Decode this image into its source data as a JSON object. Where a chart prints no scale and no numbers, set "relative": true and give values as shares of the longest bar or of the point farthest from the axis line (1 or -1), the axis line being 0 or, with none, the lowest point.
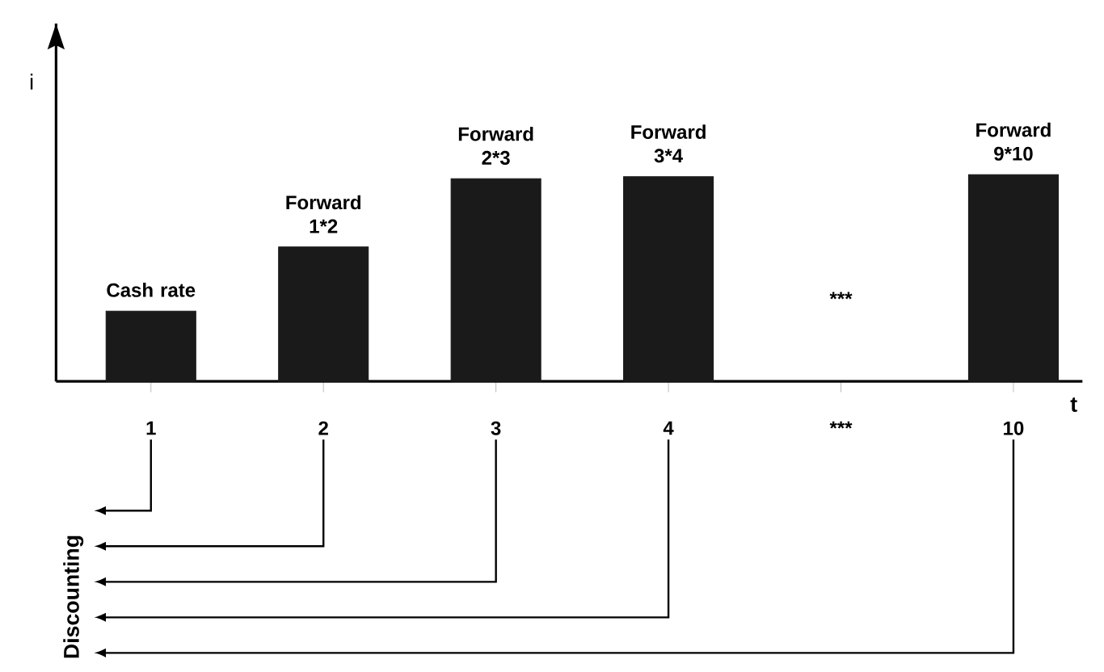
{
  "chart_data": {
    "type": "bar",
    "relative": true,
    "xlabel": "t",
    "ylabel": "i",
    "categories": [
      "1",
      "2",
      "3",
      "4",
      "***",
      "10"
    ],
    "values": [
      0.34,
      0.65,
      0.98,
      0.99,
      null,
      1
    ],
    "color": "#1a1a1a",
    "annotations": [
      "Cash rate",
      "Forward 1*2",
      "Forward 2*3",
      "Forward 3*4",
      "***",
      "Forward 9*10",
      "Discounting"
    ]
  }
}
